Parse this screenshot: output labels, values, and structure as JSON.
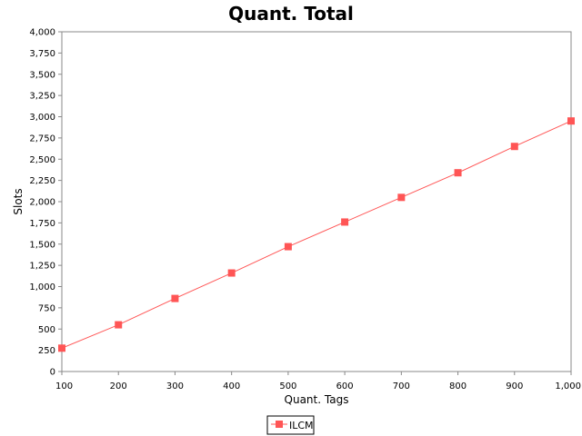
{
  "chart_data": {
    "type": "line",
    "title": "Quant. Total",
    "xlabel": "Quant. Tags",
    "ylabel": "Slots",
    "xlim": [
      100,
      1000
    ],
    "ylim": [
      0,
      4000
    ],
    "x_ticks": [
      "100",
      "200",
      "300",
      "400",
      "500",
      "600",
      "700",
      "800",
      "900",
      "1,000"
    ],
    "y_ticks": [
      "0",
      "250",
      "500",
      "750",
      "1,000",
      "1,250",
      "1,500",
      "1,750",
      "2,000",
      "2,250",
      "2,500",
      "2,750",
      "3,000",
      "3,250",
      "3,500",
      "3,750",
      "4,000"
    ],
    "grid": false,
    "legend_position": "bottom",
    "series": [
      {
        "name": "ILCM",
        "color": "#ff5555",
        "marker": "square",
        "x": [
          100,
          200,
          300,
          400,
          500,
          600,
          700,
          800,
          900,
          1000
        ],
        "y": [
          275,
          550,
          860,
          1160,
          1470,
          1760,
          2050,
          2340,
          2650,
          2950
        ]
      }
    ]
  }
}
